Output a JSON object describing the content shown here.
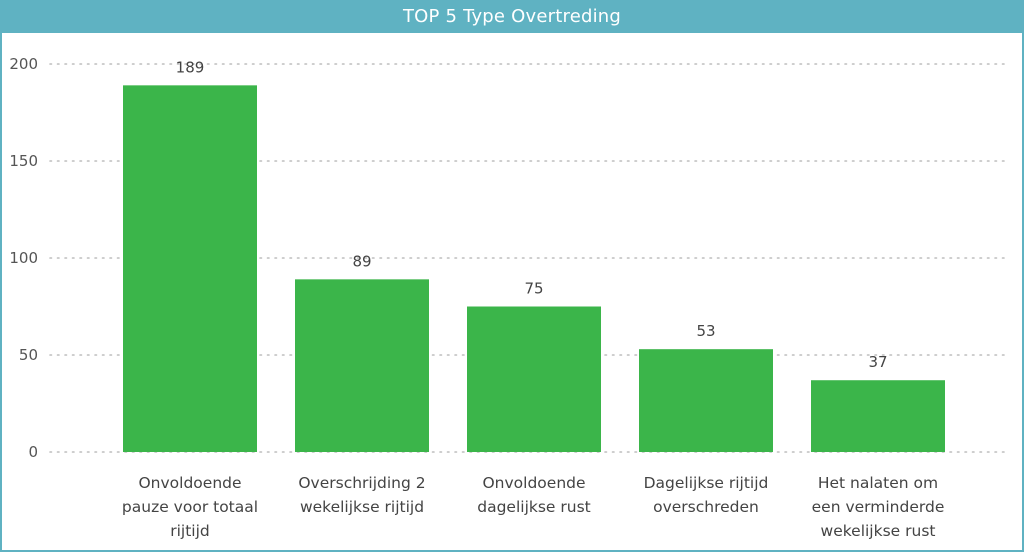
{
  "chart_data": {
    "type": "bar",
    "title": "TOP 5 Type Overtreding",
    "xlabel": "",
    "ylabel": "",
    "ylim": [
      0,
      200
    ],
    "yticks": [
      0,
      50,
      100,
      150,
      200
    ],
    "categories": [
      [
        "Onvoldoende",
        "pauze voor totaal",
        "rijtijd"
      ],
      [
        "Overschrijding 2",
        "wekelijkse rijtijd"
      ],
      [
        "Onvoldoende",
        "dagelijkse rust"
      ],
      [
        "Dagelijkse rijtijd",
        "overschreden"
      ],
      [
        "Het nalaten om",
        "een verminderde",
        "wekelijkse rust"
      ]
    ],
    "values": [
      189,
      89,
      75,
      53,
      37
    ],
    "grid": true,
    "bar_color": "#3bb54a",
    "title_bar_color": "#5fb2c2"
  }
}
